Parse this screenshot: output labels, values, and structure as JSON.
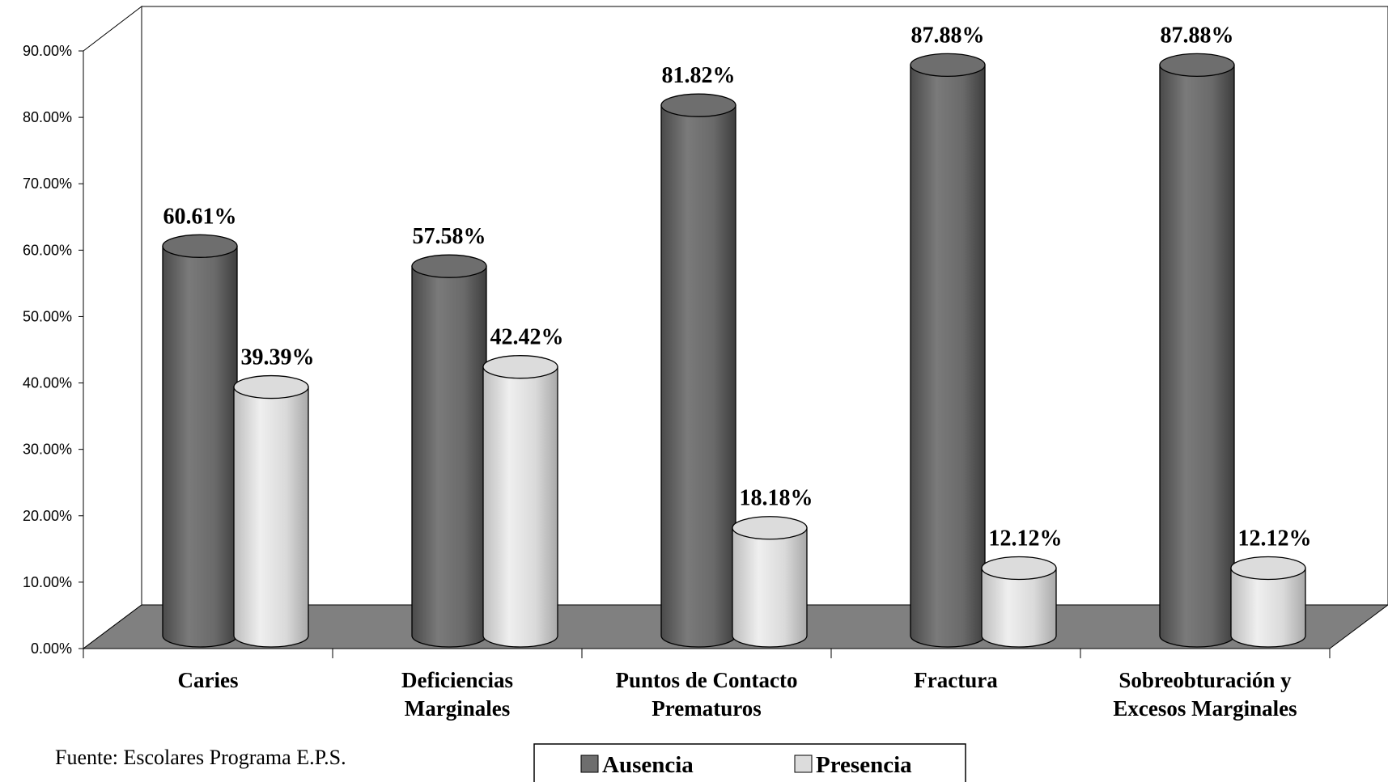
{
  "chart_data": {
    "type": "bar",
    "categories": [
      [
        "Caries"
      ],
      [
        "Deficiencias",
        "Marginales"
      ],
      [
        "Puntos de Contacto",
        "Prematuros"
      ],
      [
        "Fractura"
      ],
      [
        "Sobreobturación y",
        "Excesos Marginales"
      ]
    ],
    "series": [
      {
        "name": "Ausencia",
        "values": [
          60.61,
          57.58,
          81.82,
          87.88,
          87.88
        ],
        "labels": [
          "60.61%",
          "57.58%",
          "81.82%",
          "87.88%",
          "87.88%"
        ],
        "color": "#6e6e6e"
      },
      {
        "name": "Presencia",
        "values": [
          39.39,
          42.42,
          18.18,
          12.12,
          12.12
        ],
        "labels": [
          "39.39%",
          "42.42%",
          "18.18%",
          "12.12%",
          "12.12%"
        ],
        "color": "#dcdcdc"
      }
    ],
    "ylim": [
      0,
      90
    ],
    "yticks": [
      "0.00%",
      "10.00%",
      "20.00%",
      "30.00%",
      "40.00%",
      "50.00%",
      "60.00%",
      "70.00%",
      "80.00%",
      "90.00%"
    ],
    "bar_shape": "cylinder",
    "floor_color": "#808080",
    "legend_position": "bottom-center",
    "grid": false
  },
  "source_note": "Fuente:  Escolares Programa E.P.S."
}
